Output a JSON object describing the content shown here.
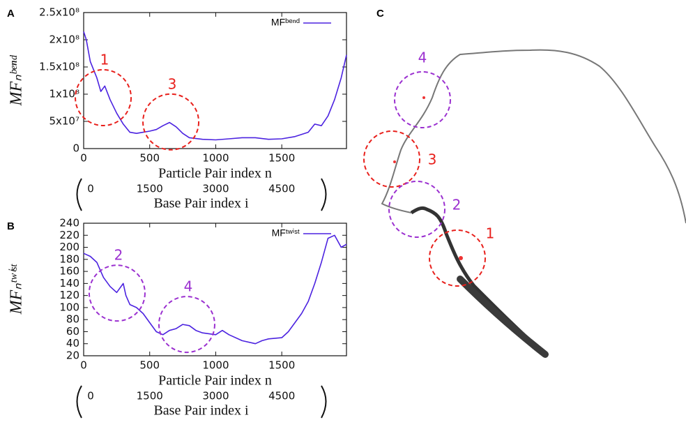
{
  "chart_data": [
    {
      "type": "line",
      "panel": "A",
      "x_label": "Particle Pair index n",
      "y_label": "MFₙᵇᵉⁿᵈ",
      "x2_label": "Base Pair index i",
      "xlim": [
        0,
        1990
      ],
      "xticks": [
        0,
        500,
        1000,
        1500
      ],
      "x2lim": [
        0,
        5970
      ],
      "x2ticks": [
        0,
        1500,
        3000,
        4500
      ],
      "ylim": [
        0,
        250000000
      ],
      "yticks": [
        0,
        {
          "value": 50000000,
          "label": "5x10⁷"
        },
        {
          "value": 100000000,
          "label": "1x10⁸"
        },
        {
          "value": 150000000,
          "label": "1.5x10⁸"
        },
        {
          "value": 200000000,
          "label": "2x10⁸"
        },
        {
          "value": 250000000,
          "label": "2.5x10⁸"
        }
      ],
      "legend": "upper right",
      "x": [
        0,
        20,
        50,
        100,
        130,
        160,
        200,
        250,
        300,
        350,
        400,
        450,
        500,
        550,
        600,
        650,
        700,
        750,
        800,
        900,
        1000,
        1100,
        1200,
        1300,
        1400,
        1500,
        1600,
        1700,
        1750,
        1800,
        1850,
        1900,
        1950,
        1990
      ],
      "series": [
        {
          "name": "MFᵇᵉⁿᵈ",
          "color": "#4b22e0",
          "values": [
            215000000,
            200000000,
            160000000,
            130000000,
            105000000,
            115000000,
            90000000,
            65000000,
            45000000,
            30000000,
            28000000,
            30000000,
            32000000,
            35000000,
            42000000,
            48000000,
            40000000,
            28000000,
            20000000,
            17000000,
            16000000,
            18000000,
            20000000,
            20000000,
            17000000,
            18000000,
            22000000,
            30000000,
            45000000,
            42000000,
            60000000,
            90000000,
            130000000,
            172000000
          ]
        }
      ],
      "annotations": [
        {
          "label": "1",
          "x": 148,
          "y": 93600000,
          "color": "#e8201c"
        },
        {
          "label": "3",
          "x": 660,
          "y": 49000000,
          "color": "#e8201c"
        }
      ]
    },
    {
      "type": "line",
      "panel": "B",
      "x_label": "Particle Pair index n",
      "y_label": "MFₙᵗʷⁱˢᵗ",
      "x2_label": "Base Pair index i",
      "xlim": [
        0,
        1990
      ],
      "xticks": [
        0,
        500,
        1000,
        1500
      ],
      "x2lim": [
        0,
        5970
      ],
      "x2ticks": [
        0,
        1500,
        3000,
        4500
      ],
      "ylim": [
        20,
        240
      ],
      "yticks": [
        20,
        40,
        60,
        80,
        100,
        120,
        140,
        160,
        180,
        200,
        220,
        240
      ],
      "legend": "upper right",
      "x": [
        0,
        50,
        100,
        150,
        200,
        250,
        300,
        320,
        350,
        400,
        450,
        500,
        550,
        600,
        650,
        700,
        750,
        800,
        850,
        900,
        1000,
        1050,
        1100,
        1200,
        1300,
        1350,
        1400,
        1500,
        1550,
        1600,
        1650,
        1700,
        1750,
        1800,
        1850,
        1900,
        1950,
        1990
      ],
      "series": [
        {
          "name": "MFᵗʷⁱˢᵗ",
          "color": "#4b22e0",
          "values": [
            190,
            185,
            175,
            150,
            135,
            125,
            140,
            120,
            105,
            100,
            90,
            75,
            60,
            55,
            62,
            65,
            72,
            70,
            62,
            58,
            55,
            62,
            55,
            45,
            40,
            45,
            48,
            50,
            60,
            75,
            90,
            110,
            140,
            175,
            215,
            220,
            200,
            205
          ]
        }
      ],
      "annotations": [
        {
          "label": "2",
          "x": 253,
          "y": 124,
          "color": "#9b30d0"
        },
        {
          "label": "4",
          "x": 781,
          "y": 72,
          "color": "#9b30d0"
        }
      ]
    }
  ],
  "panel_c": {
    "panel": "C",
    "labels": [
      "4",
      "3",
      "2",
      "1"
    ]
  }
}
